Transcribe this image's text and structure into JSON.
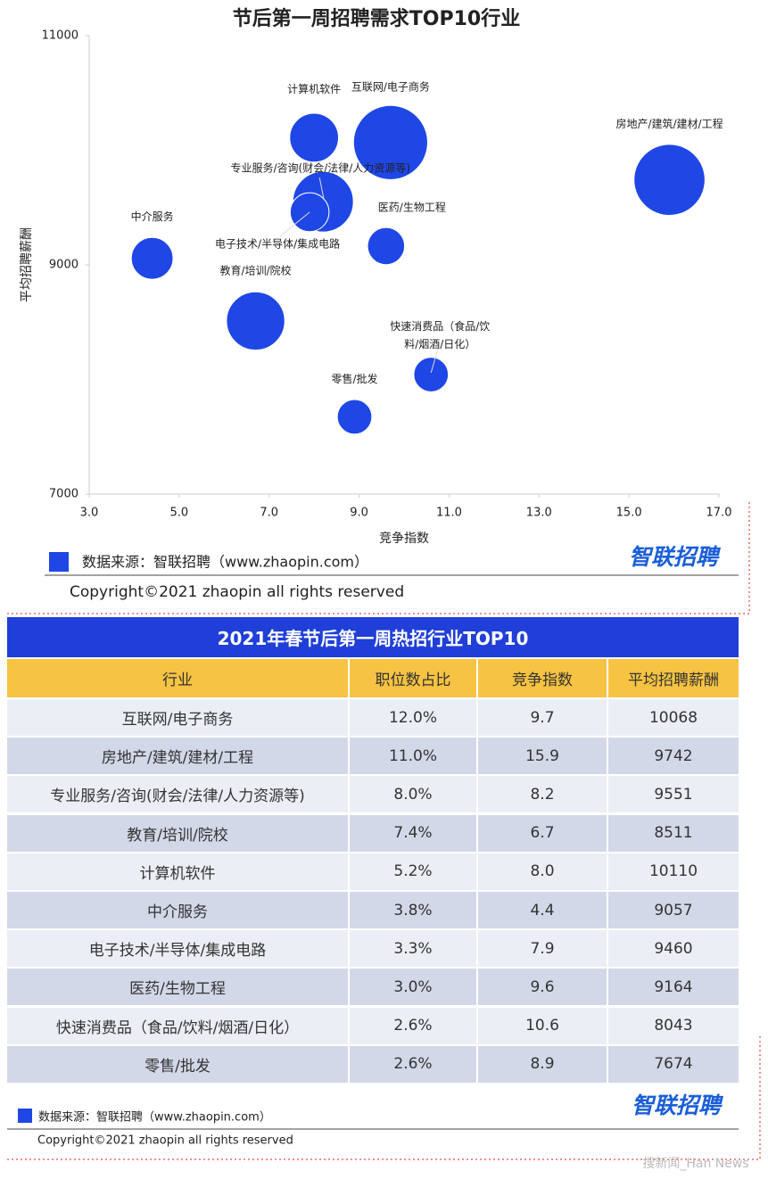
{
  "chart_data": {
    "type": "bubble",
    "title": "节后第一周招聘需求TOP10行业",
    "xlabel": "竞争指数",
    "ylabel": "平均招聘薪酬",
    "categories": [
      "互联网/电子商务",
      "房地产/建筑/建材/工程",
      "专业服务/咨询(财会/法律/人力资源等)",
      "教育/培训/院校",
      "计算机软件",
      "中介服务",
      "电子技术/半导体/集成电路",
      "医药/生物工程",
      "快速消费品（食品/饮料/烟酒/日化）",
      "零售/批发"
    ],
    "x": [
      9.7,
      15.9,
      8.2,
      6.7,
      8.0,
      4.4,
      7.9,
      9.6,
      10.6,
      8.9
    ],
    "values": [
      10068,
      9742,
      9551,
      8511,
      10110,
      9057,
      9460,
      9164,
      8043,
      7674
    ],
    "sizes": [
      12.0,
      11.0,
      8.0,
      7.4,
      5.2,
      3.8,
      3.3,
      3.0,
      2.6,
      2.6
    ],
    "color": "#1f47e6",
    "xlim": [
      3,
      17
    ],
    "xticks": [
      {
        "value": 3,
        "label": "3.0"
      },
      {
        "value": 5,
        "label": "5.0"
      },
      {
        "value": 7,
        "label": "7.0"
      },
      {
        "value": 9,
        "label": "9.0"
      },
      {
        "value": 11,
        "label": "11.0"
      },
      {
        "value": 13,
        "label": "13.0"
      },
      {
        "value": 15,
        "label": "15.0"
      },
      {
        "value": 17,
        "label": "17.0"
      }
    ],
    "ylim": [
      7000,
      11000
    ],
    "yticks": [
      7000,
      9000,
      11000
    ],
    "source": "数据来源：智联招聘（www.zhaopin.com）",
    "logo": "智联招聘",
    "copyright": "Copyright©2021 zhaopin all rights reserved"
  },
  "table": {
    "title": "2021年春节后第一周热招行业TOP10",
    "header": [
      "行业",
      "职位数占比",
      "竞争指数",
      "平均招聘薪酬"
    ],
    "rows": [
      [
        "互联网/电子商务",
        "12.0%",
        "9.7",
        "10068"
      ],
      [
        "房地产/建筑/建材/工程",
        "11.0%",
        "15.9",
        "9742"
      ],
      [
        "专业服务/咨询(财会/法律/人力资源等)",
        "8.0%",
        "8.2",
        "9551"
      ],
      [
        "教育/培训/院校",
        "7.4%",
        "6.7",
        "8511"
      ],
      [
        "计算机软件",
        "5.2%",
        "8.0",
        "10110"
      ],
      [
        "中介服务",
        "3.8%",
        "4.4",
        "9057"
      ],
      [
        "电子技术/半导体/集成电路",
        "3.3%",
        "7.9",
        "9460"
      ],
      [
        "医药/生物工程",
        "3.0%",
        "9.6",
        "9164"
      ],
      [
        "快速消费品（食品/饮料/烟酒/日化）",
        "2.6%",
        "10.6",
        "8043"
      ],
      [
        "零售/批发",
        "2.6%",
        "8.9",
        "7674"
      ]
    ],
    "source": "数据来源：智联招聘（www.zhaopin.com）",
    "logo": "智联招聘",
    "copyright": "Copyright©2021 zhaopin all rights reserved"
  },
  "watermark": "搜新闻_Han News"
}
